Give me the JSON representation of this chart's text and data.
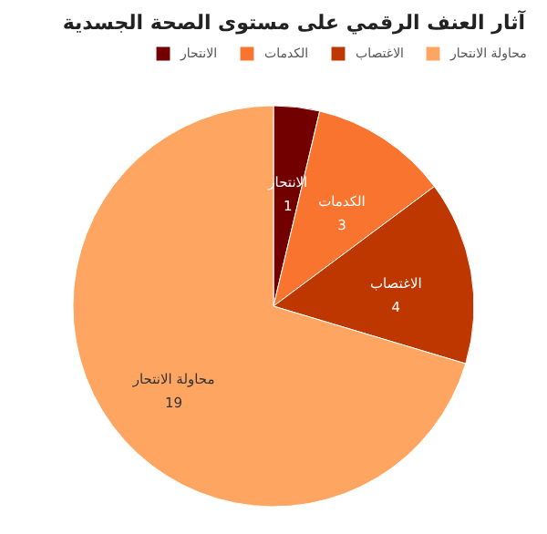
{
  "chart_data": {
    "type": "pie",
    "title": "آثار العنف الرقمي على مستوى الصحة الجسدية",
    "categories": [
      "الانتحار",
      "الكدمات",
      "الاغتصاب",
      "محاولة الانتحار"
    ],
    "values": [
      1,
      3,
      4,
      19
    ],
    "colors": [
      "#730000",
      "#f8742f",
      "#bf3700",
      "#fea661"
    ],
    "data_labels": true,
    "legend": "top right"
  }
}
